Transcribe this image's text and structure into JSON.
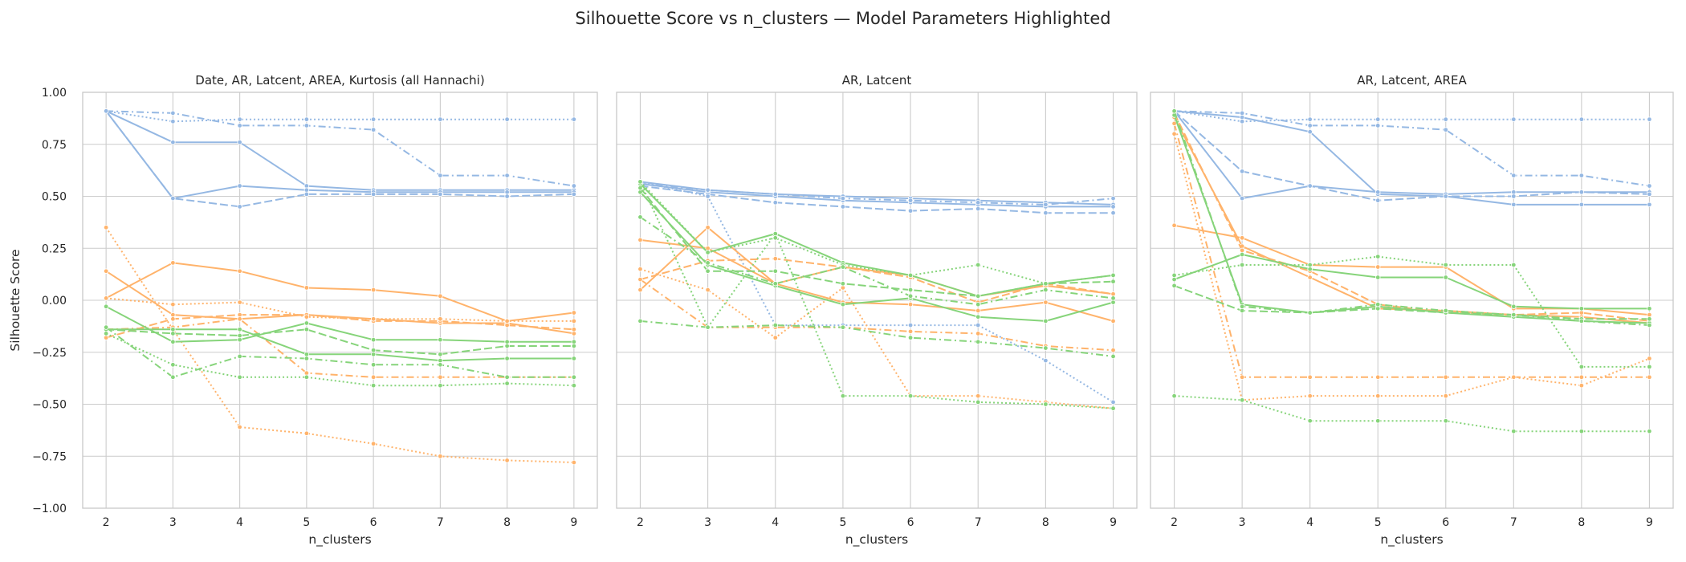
{
  "figure": {
    "title": "Silhouette Score vs n_clusters — Model Parameters Highlighted",
    "ylabel": "Silhouette Score"
  },
  "colors": {
    "blue": "#95b8e3",
    "orange": "#ffb36b",
    "green": "#86d47a",
    "grid": "#cccccc",
    "spine": "#c8c8c8"
  },
  "chart_data": [
    {
      "type": "line",
      "title": "Date, AR, Latcent, AREA, Kurtosis (all Hannachi)",
      "xlabel": "n_clusters",
      "ylabel": "Silhouette Score",
      "x": [
        2,
        3,
        4,
        5,
        6,
        7,
        8,
        9
      ],
      "xticks": [
        "2",
        "3",
        "4",
        "5",
        "6",
        "7",
        "8",
        "9"
      ],
      "ylim": [
        -1.0,
        1.0
      ],
      "yticks": [
        "−1.00",
        "−0.75",
        "−0.50",
        "−0.25",
        "0.00",
        "0.25",
        "0.50",
        "0.75",
        "1.00"
      ],
      "grid": true,
      "series": [
        {
          "color": "blue",
          "dash": "solid",
          "values": [
            0.91,
            0.76,
            0.76,
            0.55,
            0.53,
            0.53,
            0.53,
            0.53
          ]
        },
        {
          "color": "blue",
          "dash": "solid",
          "values": [
            0.91,
            0.49,
            0.55,
            0.53,
            0.52,
            0.52,
            0.52,
            0.52
          ]
        },
        {
          "color": "blue",
          "dash": "dashed",
          "values": [
            0.91,
            0.49,
            0.45,
            0.51,
            0.51,
            0.51,
            0.5,
            0.51
          ]
        },
        {
          "color": "blue",
          "dash": "dotted",
          "values": [
            0.91,
            0.86,
            0.87,
            0.87,
            0.87,
            0.87,
            0.87,
            0.87
          ]
        },
        {
          "color": "blue",
          "dash": "dashdot",
          "values": [
            0.91,
            0.9,
            0.84,
            0.84,
            0.82,
            0.6,
            0.6,
            0.55
          ]
        },
        {
          "color": "orange",
          "dash": "solid",
          "values": [
            0.01,
            0.18,
            0.14,
            0.06,
            0.05,
            0.02,
            -0.1,
            -0.06
          ]
        },
        {
          "color": "orange",
          "dash": "solid",
          "values": [
            0.14,
            -0.07,
            -0.09,
            -0.07,
            -0.09,
            -0.11,
            -0.11,
            -0.16
          ]
        },
        {
          "color": "orange",
          "dash": "dashed",
          "values": [
            -0.18,
            -0.09,
            -0.07,
            -0.07,
            -0.1,
            -0.1,
            -0.12,
            -0.14
          ]
        },
        {
          "color": "orange",
          "dash": "dotted",
          "values": [
            0.35,
            -0.14,
            -0.61,
            -0.64,
            -0.69,
            -0.75,
            -0.77,
            -0.78
          ]
        },
        {
          "color": "orange",
          "dash": "dotted",
          "values": [
            0.01,
            -0.02,
            -0.01,
            -0.08,
            -0.09,
            -0.09,
            -0.1,
            -0.1
          ]
        },
        {
          "color": "orange",
          "dash": "dashdot",
          "values": [
            -0.14,
            -0.13,
            -0.09,
            -0.35,
            -0.37,
            -0.37,
            -0.37,
            -0.37
          ]
        },
        {
          "color": "green",
          "dash": "solid",
          "values": [
            -0.03,
            -0.2,
            -0.19,
            -0.11,
            -0.19,
            -0.19,
            -0.2,
            -0.2
          ]
        },
        {
          "color": "green",
          "dash": "solid",
          "values": [
            -0.14,
            -0.14,
            -0.14,
            -0.26,
            -0.26,
            -0.29,
            -0.28,
            -0.28
          ]
        },
        {
          "color": "green",
          "dash": "dashed",
          "values": [
            -0.14,
            -0.16,
            -0.17,
            -0.14,
            -0.24,
            -0.26,
            -0.22,
            -0.22
          ]
        },
        {
          "color": "green",
          "dash": "dotted",
          "values": [
            -0.16,
            -0.31,
            -0.37,
            -0.37,
            -0.41,
            -0.41,
            -0.4,
            -0.41
          ]
        },
        {
          "color": "green",
          "dash": "dashdot",
          "values": [
            -0.13,
            -0.37,
            -0.27,
            -0.28,
            -0.31,
            -0.31,
            -0.37,
            -0.37
          ]
        }
      ]
    },
    {
      "type": "line",
      "title": "AR, Latcent",
      "xlabel": "n_clusters",
      "x": [
        2,
        3,
        4,
        5,
        6,
        7,
        8,
        9
      ],
      "xticks": [
        "2",
        "3",
        "4",
        "5",
        "6",
        "7",
        "8",
        "9"
      ],
      "ylim": [
        -1.0,
        1.0
      ],
      "grid": true,
      "series": [
        {
          "color": "blue",
          "dash": "solid",
          "values": [
            0.57,
            0.53,
            0.51,
            0.5,
            0.49,
            0.48,
            0.47,
            0.46
          ]
        },
        {
          "color": "blue",
          "dash": "solid",
          "values": [
            0.56,
            0.52,
            0.5,
            0.48,
            0.47,
            0.46,
            0.45,
            0.45
          ]
        },
        {
          "color": "blue",
          "dash": "dashed",
          "values": [
            0.55,
            0.51,
            0.47,
            0.45,
            0.43,
            0.44,
            0.42,
            0.42
          ]
        },
        {
          "color": "blue",
          "dash": "dotted",
          "values": [
            0.57,
            0.5,
            -0.12,
            -0.12,
            -0.12,
            -0.12,
            -0.29,
            -0.49
          ]
        },
        {
          "color": "blue",
          "dash": "dashdot",
          "values": [
            0.56,
            0.53,
            0.51,
            0.49,
            0.48,
            0.47,
            0.46,
            0.49
          ]
        },
        {
          "color": "orange",
          "dash": "solid",
          "values": [
            0.05,
            0.35,
            0.08,
            0.16,
            0.12,
            0.02,
            0.07,
            0.03
          ]
        },
        {
          "color": "orange",
          "dash": "solid",
          "values": [
            0.29,
            0.25,
            0.08,
            -0.01,
            -0.02,
            -0.05,
            -0.01,
            -0.1
          ]
        },
        {
          "color": "orange",
          "dash": "dashed",
          "values": [
            0.1,
            0.19,
            0.2,
            0.16,
            0.11,
            -0.01,
            0.08,
            0.03
          ]
        },
        {
          "color": "orange",
          "dash": "dotted",
          "values": [
            0.15,
            0.05,
            -0.18,
            0.06,
            -0.46,
            -0.46,
            -0.49,
            -0.52
          ]
        },
        {
          "color": "orange",
          "dash": "dashdot",
          "values": [
            0.1,
            -0.13,
            -0.13,
            -0.13,
            -0.15,
            -0.16,
            -0.22,
            -0.24
          ]
        },
        {
          "color": "green",
          "dash": "solid",
          "values": [
            0.56,
            0.23,
            0.32,
            0.18,
            0.12,
            0.02,
            0.08,
            0.12
          ]
        },
        {
          "color": "green",
          "dash": "solid",
          "values": [
            0.52,
            0.17,
            0.07,
            -0.02,
            0.01,
            -0.08,
            -0.1,
            -0.01
          ]
        },
        {
          "color": "green",
          "dash": "dashed",
          "values": [
            0.54,
            0.14,
            0.14,
            0.08,
            0.05,
            0.02,
            0.08,
            0.09
          ]
        },
        {
          "color": "green",
          "dash": "dotted",
          "values": [
            0.57,
            -0.13,
            0.32,
            -0.46,
            -0.46,
            -0.49,
            -0.5,
            -0.52
          ]
        },
        {
          "color": "green",
          "dash": "dotted",
          "values": [
            0.57,
            0.23,
            0.3,
            0.17,
            0.12,
            0.17,
            0.08,
            0.12
          ]
        },
        {
          "color": "green",
          "dash": "dashdot",
          "values": [
            -0.1,
            -0.13,
            -0.12,
            -0.13,
            -0.18,
            -0.2,
            -0.23,
            -0.27
          ]
        },
        {
          "color": "green",
          "dash": "dashdot",
          "values": [
            0.4,
            0.18,
            0.08,
            0.16,
            0.02,
            -0.02,
            0.05,
            0.01
          ]
        }
      ]
    },
    {
      "type": "line",
      "title": "AR, Latcent, AREA",
      "xlabel": "n_clusters",
      "x": [
        2,
        3,
        4,
        5,
        6,
        7,
        8,
        9
      ],
      "xticks": [
        "2",
        "3",
        "4",
        "5",
        "6",
        "7",
        "8",
        "9"
      ],
      "ylim": [
        -1.0,
        1.0
      ],
      "grid": true,
      "series": [
        {
          "color": "blue",
          "dash": "solid",
          "values": [
            0.91,
            0.88,
            0.81,
            0.51,
            0.5,
            0.46,
            0.46,
            0.46
          ]
        },
        {
          "color": "blue",
          "dash": "solid",
          "values": [
            0.91,
            0.49,
            0.55,
            0.52,
            0.51,
            0.52,
            0.52,
            0.52
          ]
        },
        {
          "color": "blue",
          "dash": "dashed",
          "values": [
            0.91,
            0.62,
            0.55,
            0.48,
            0.5,
            0.5,
            0.52,
            0.51
          ]
        },
        {
          "color": "blue",
          "dash": "dotted",
          "values": [
            0.91,
            0.86,
            0.87,
            0.87,
            0.87,
            0.87,
            0.87,
            0.87
          ]
        },
        {
          "color": "blue",
          "dash": "dashdot",
          "values": [
            0.91,
            0.9,
            0.84,
            0.84,
            0.82,
            0.6,
            0.6,
            0.55
          ]
        },
        {
          "color": "orange",
          "dash": "solid",
          "values": [
            0.36,
            0.3,
            0.17,
            0.16,
            0.16,
            -0.04,
            -0.04,
            -0.07
          ]
        },
        {
          "color": "orange",
          "dash": "solid",
          "values": [
            0.88,
            0.26,
            0.11,
            -0.04,
            -0.05,
            -0.07,
            -0.08,
            -0.11
          ]
        },
        {
          "color": "orange",
          "dash": "dashed",
          "values": [
            0.9,
            0.24,
            0.14,
            -0.02,
            -0.06,
            -0.07,
            -0.06,
            -0.1
          ]
        },
        {
          "color": "orange",
          "dash": "dotted",
          "values": [
            0.8,
            -0.48,
            -0.46,
            -0.46,
            -0.46,
            -0.37,
            -0.41,
            -0.28
          ]
        },
        {
          "color": "orange",
          "dash": "dashdot",
          "values": [
            0.85,
            -0.37,
            -0.37,
            -0.37,
            -0.37,
            -0.37,
            -0.37,
            -0.37
          ]
        },
        {
          "color": "green",
          "dash": "solid",
          "values": [
            0.1,
            0.22,
            0.15,
            0.11,
            0.11,
            -0.03,
            -0.04,
            -0.04
          ]
        },
        {
          "color": "green",
          "dash": "solid",
          "values": [
            0.89,
            -0.02,
            -0.06,
            -0.03,
            -0.06,
            -0.08,
            -0.1,
            -0.11
          ]
        },
        {
          "color": "green",
          "dash": "dashed",
          "values": [
            0.07,
            -0.05,
            -0.06,
            -0.04,
            -0.06,
            -0.07,
            -0.09,
            -0.09
          ]
        },
        {
          "color": "green",
          "dash": "dotted",
          "values": [
            -0.46,
            -0.48,
            -0.58,
            -0.58,
            -0.58,
            -0.63,
            -0.63,
            -0.63
          ]
        },
        {
          "color": "green",
          "dash": "dotted",
          "values": [
            0.12,
            0.17,
            0.17,
            0.21,
            0.17,
            0.17,
            -0.32,
            -0.32
          ]
        },
        {
          "color": "green",
          "dash": "dashdot",
          "values": [
            0.91,
            -0.03,
            -0.06,
            -0.02,
            -0.05,
            -0.07,
            -0.1,
            -0.12
          ]
        }
      ]
    }
  ]
}
